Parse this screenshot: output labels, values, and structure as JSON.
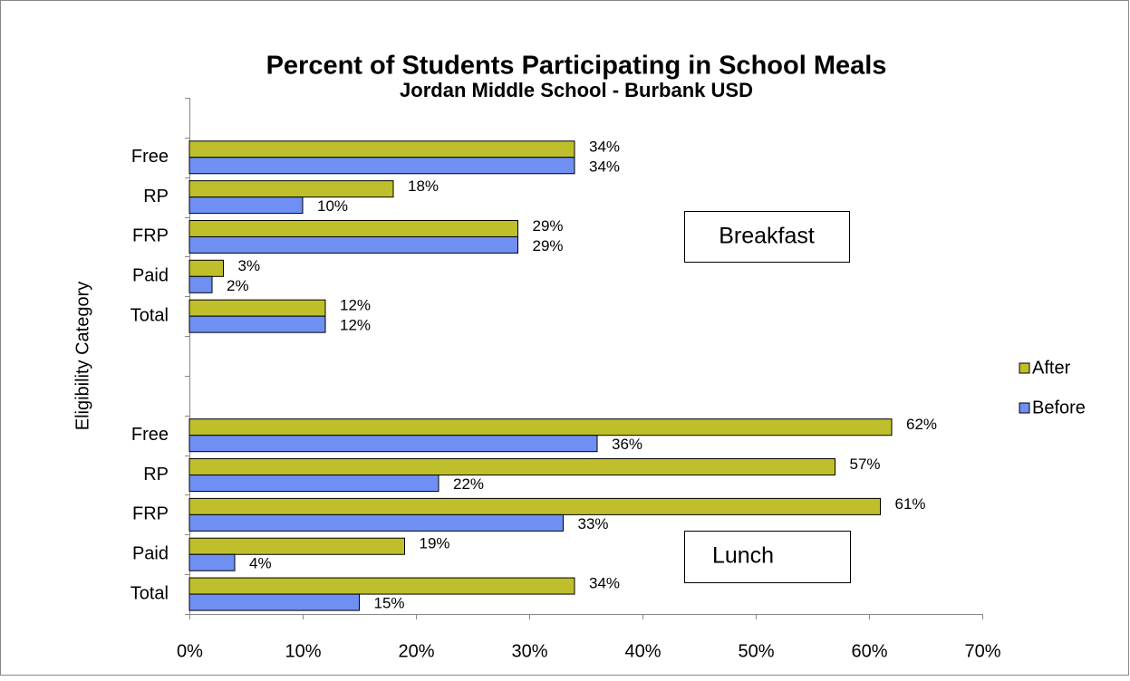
{
  "chart_data": {
    "type": "bar",
    "orientation": "horizontal",
    "title": "Percent of Students Participating in School Meals",
    "subtitle": "Jordan Middle School - Burbank USD",
    "y_label": "Eligibility Category",
    "categories": [
      null,
      "Free",
      "RP",
      "FRP",
      "Paid",
      "Total",
      null,
      null,
      "Free",
      "RP",
      "FRP",
      "Paid",
      "Total"
    ],
    "series": [
      {
        "name": "After",
        "color": "#bfbf2c",
        "values": [
          null,
          34,
          18,
          29,
          3,
          12,
          null,
          null,
          62,
          57,
          61,
          19,
          34
        ],
        "value_labels": [
          null,
          "34%",
          "18%",
          "29%",
          "3%",
          "12%",
          null,
          null,
          "62%",
          "57%",
          "61%",
          "19%",
          "34%"
        ]
      },
      {
        "name": "Before",
        "color": "#6f8ff2",
        "values": [
          null,
          34,
          10,
          29,
          2,
          12,
          null,
          null,
          36,
          22,
          33,
          4,
          15
        ],
        "value_labels": [
          null,
          "34%",
          "10%",
          "29%",
          "2%",
          "12%",
          null,
          null,
          "36%",
          "22%",
          "33%",
          "4%",
          "15%"
        ]
      }
    ],
    "xlim": [
      0,
      70
    ],
    "xticks": [
      {
        "value": 0,
        "label": "0%"
      },
      {
        "value": 10,
        "label": "10%"
      },
      {
        "value": 20,
        "label": "20%"
      },
      {
        "value": 30,
        "label": "30%"
      },
      {
        "value": 40,
        "label": "40%"
      },
      {
        "value": 50,
        "label": "50%"
      },
      {
        "value": 60,
        "label": "60%"
      },
      {
        "value": 70,
        "label": "70%"
      }
    ],
    "grid": false,
    "legend": "right",
    "annotations": [
      "Breakfast",
      "Lunch"
    ]
  }
}
